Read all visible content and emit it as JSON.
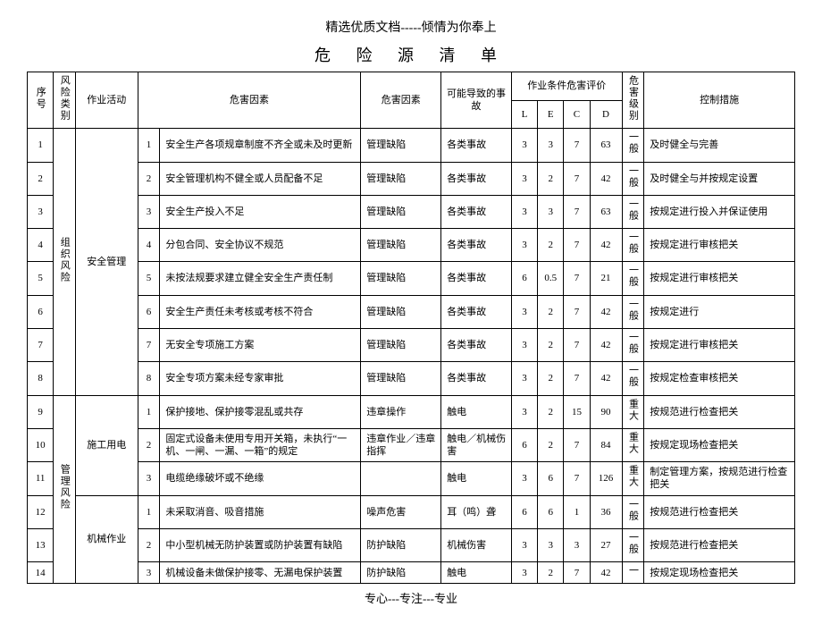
{
  "header_top": "精选优质文档-----倾情为你奉上",
  "title": "危 险 源 清 单",
  "footer": "专心---专注---专业",
  "headers": {
    "seq": "序号",
    "risk_cat": "风险类别",
    "activity": "作业活动",
    "factor": "危害因素",
    "factor_type": "危害因素",
    "accident": "可能导致的事故",
    "eval_group": "作业条件危害评价",
    "L": "L",
    "E": "E",
    "C": "C",
    "D": "D",
    "risk_level": "危害级别",
    "measure": "控制措施"
  },
  "cat1": "组织风险",
  "cat2": "管理风险",
  "act1": "安全管理",
  "act2": "施工用电",
  "act3": "机械作业",
  "rows": [
    {
      "seq": "1",
      "idx": "1",
      "factor": "安全生产各项规章制度不齐全或未及时更新",
      "type": "管理缺陷",
      "acc": "各类事故",
      "L": "3",
      "E": "3",
      "C": "7",
      "D": "63",
      "lv": "一般",
      "meas": "及时健全与完善"
    },
    {
      "seq": "2",
      "idx": "2",
      "factor": "安全管理机构不健全或人员配备不足",
      "type": "管理缺陷",
      "acc": "各类事故",
      "L": "3",
      "E": "2",
      "C": "7",
      "D": "42",
      "lv": "一般",
      "meas": "及时健全与并按规定设置"
    },
    {
      "seq": "3",
      "idx": "3",
      "factor": "安全生产投入不足",
      "type": "管理缺陷",
      "acc": "各类事故",
      "L": "3",
      "E": "3",
      "C": "7",
      "D": "63",
      "lv": "一般",
      "meas": "按规定进行投入并保证使用"
    },
    {
      "seq": "4",
      "idx": "4",
      "factor": "分包合同、安全协议不规范",
      "type": "管理缺陷",
      "acc": "各类事故",
      "L": "3",
      "E": "2",
      "C": "7",
      "D": "42",
      "lv": "一般",
      "meas": "按规定进行审核把关"
    },
    {
      "seq": "5",
      "idx": "5",
      "factor": "未按法规要求建立健全安全生产责任制",
      "type": "管理缺陷",
      "acc": "各类事故",
      "L": "6",
      "E": "0.5",
      "C": "7",
      "D": "21",
      "lv": "一般",
      "meas": "按规定进行审核把关"
    },
    {
      "seq": "6",
      "idx": "6",
      "factor": "安全生产责任未考核或考核不符合",
      "type": "管理缺陷",
      "acc": "各类事故",
      "L": "3",
      "E": "2",
      "C": "7",
      "D": "42",
      "lv": "一般",
      "meas": "按规定进行"
    },
    {
      "seq": "7",
      "idx": "7",
      "factor": "无安全专项施工方案",
      "type": "管理缺陷",
      "acc": "各类事故",
      "L": "3",
      "E": "2",
      "C": "7",
      "D": "42",
      "lv": "一般",
      "meas": "按规定进行审核把关"
    },
    {
      "seq": "8",
      "idx": "8",
      "factor": "安全专项方案未经专家审批",
      "type": "管理缺陷",
      "acc": "各类事故",
      "L": "3",
      "E": "2",
      "C": "7",
      "D": "42",
      "lv": "一般",
      "meas": "按规定检查审核把关"
    },
    {
      "seq": "9",
      "idx": "1",
      "factor": "保护接地、保护接零混乱或共存",
      "type": "违章操作",
      "acc": "触电",
      "L": "3",
      "E": "2",
      "C": "15",
      "D": "90",
      "lv": "重大",
      "meas": "按规范进行检查把关"
    },
    {
      "seq": "10",
      "idx": "2",
      "factor": "固定式设备未使用专用开关箱，未执行“一机、一闸、一漏、一箱”的规定",
      "type": "违章作业／违章指挥",
      "acc": "触电／机械伤害",
      "L": "6",
      "E": "2",
      "C": "7",
      "D": "84",
      "lv": "重大",
      "meas": "按规定现场检查把关"
    },
    {
      "seq": "11",
      "idx": "3",
      "factor": "电缆绝缘破坏或不绝缘",
      "type": "",
      "acc": "触电",
      "L": "3",
      "E": "6",
      "C": "7",
      "D": "126",
      "lv": "重大",
      "meas": "制定管理方案，按规范进行检查把关"
    },
    {
      "seq": "12",
      "idx": "1",
      "factor": "未采取消音、吸音措施",
      "type": "噪声危害",
      "acc": "耳（鸣）聋",
      "L": "6",
      "E": "6",
      "C": "1",
      "D": "36",
      "lv": "一般",
      "meas": "按规范进行检查把关"
    },
    {
      "seq": "13",
      "idx": "2",
      "factor": "中小型机械无防护装置或防护装置有缺陷",
      "type": "防护缺陷",
      "acc": "机械伤害",
      "L": "3",
      "E": "3",
      "C": "3",
      "D": "27",
      "lv": "一般",
      "meas": "按规范进行检查把关"
    },
    {
      "seq": "14",
      "idx": "3",
      "factor": "机械设备未做保护接零、无漏电保护装置",
      "type": "防护缺陷",
      "acc": "触电",
      "L": "3",
      "E": "2",
      "C": "7",
      "D": "42",
      "lv": "一",
      "meas": "按规定现场检查把关"
    }
  ]
}
